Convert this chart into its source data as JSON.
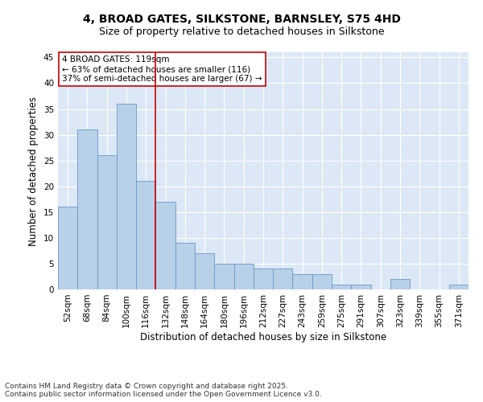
{
  "title_line1": "4, BROAD GATES, SILKSTONE, BARNSLEY, S75 4HD",
  "title_line2": "Size of property relative to detached houses in Silkstone",
  "xlabel": "Distribution of detached houses by size in Silkstone",
  "ylabel": "Number of detached properties",
  "categories": [
    "52sqm",
    "68sqm",
    "84sqm",
    "100sqm",
    "116sqm",
    "132sqm",
    "148sqm",
    "164sqm",
    "180sqm",
    "196sqm",
    "212sqm",
    "227sqm",
    "243sqm",
    "259sqm",
    "275sqm",
    "291sqm",
    "307sqm",
    "323sqm",
    "339sqm",
    "355sqm",
    "371sqm"
  ],
  "values": [
    16,
    31,
    26,
    36,
    21,
    17,
    9,
    7,
    5,
    5,
    4,
    4,
    3,
    3,
    1,
    1,
    0,
    2,
    0,
    0,
    1
  ],
  "bar_color": "#b8d0e8",
  "bar_edge_color": "#6699cc",
  "background_color": "#dce8f5",
  "grid_color": "#ffffff",
  "vline_x_idx": 4,
  "vline_color": "#cc0000",
  "annotation_box_text": "4 BROAD GATES: 119sqm\n← 63% of detached houses are smaller (116)\n37% of semi-detached houses are larger (67) →",
  "annotation_box_color": "#cc0000",
  "annotation_box_bg": "#ffffff",
  "ylim": [
    0,
    46
  ],
  "yticks": [
    0,
    5,
    10,
    15,
    20,
    25,
    30,
    35,
    40,
    45
  ],
  "footnote": "Contains HM Land Registry data © Crown copyright and database right 2025.\nContains public sector information licensed under the Open Government Licence v3.0.",
  "title_fontsize": 10,
  "subtitle_fontsize": 9,
  "axis_label_fontsize": 8.5,
  "tick_fontsize": 7.5,
  "annotation_fontsize": 7.5,
  "footnote_fontsize": 6.5
}
